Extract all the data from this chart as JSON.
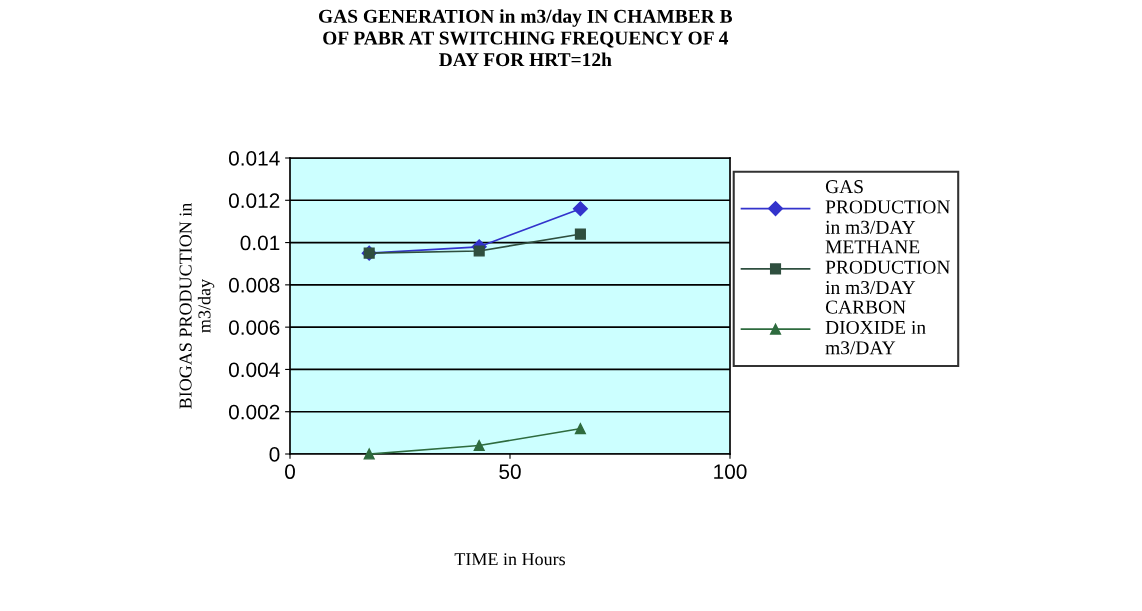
{
  "chart_data": {
    "type": "line",
    "title": "GAS GENERATION in m3/day IN CHAMBER B\nOF PABR AT SWITCHING FREQUENCY OF 4\nDAY FOR HRT=12h",
    "xlabel": "TIME in Hours",
    "ylabel": "BIOGAS PRODUCTION in\nm3/day",
    "x": [
      18,
      43,
      66
    ],
    "series": [
      {
        "name": "GAS\nPRODUCTION\nin m3/DAY",
        "color": "#3333cc",
        "marker": "diamond",
        "values": [
          0.0095,
          0.0098,
          0.0116
        ]
      },
      {
        "name": "METHANE\nPRODUCTION\nin m3/DAY",
        "color": "#2f4f3f",
        "marker": "square",
        "values": [
          0.0095,
          0.0096,
          0.0104
        ]
      },
      {
        "name": "CARBON\nDIOXIDE in\nm3/DAY",
        "color": "#2e6b3e",
        "marker": "triangle",
        "values": [
          0.0,
          0.0004,
          0.0012
        ]
      }
    ],
    "xlim": [
      0,
      100
    ],
    "xticks": [
      0,
      50,
      100
    ],
    "ylim": [
      0,
      0.014
    ],
    "yticks": [
      0,
      0.002,
      0.004,
      0.006,
      0.008,
      0.01,
      0.012,
      0.014
    ],
    "grid": "y",
    "legend": "right",
    "line_style": "solid"
  }
}
